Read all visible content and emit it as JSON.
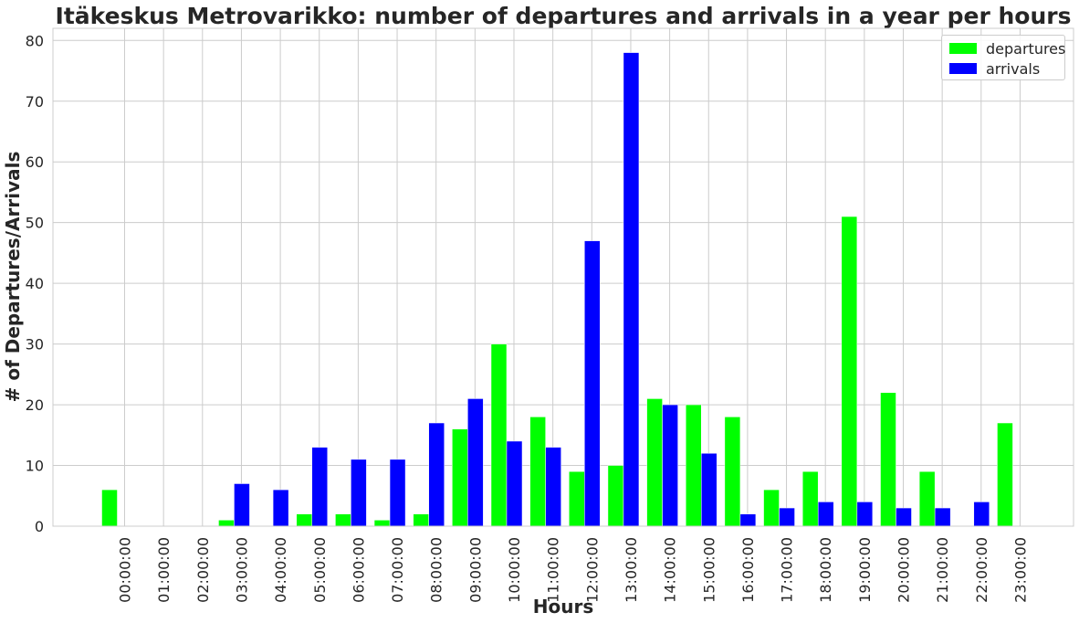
{
  "chart_data": {
    "type": "bar",
    "title": "Itäkeskus Metrovarikko: number of departures and arrivals in a year per hours",
    "xlabel": "Hours",
    "ylabel": "# of Departures/Arrivals",
    "ylim": [
      0,
      82
    ],
    "yticks": [
      0,
      10,
      20,
      30,
      40,
      50,
      60,
      70,
      80
    ],
    "grid": true,
    "legend_position": "top-right",
    "categories": [
      "00:00:00",
      "01:00:00",
      "02:00:00",
      "03:00:00",
      "04:00:00",
      "05:00:00",
      "06:00:00",
      "07:00:00",
      "08:00:00",
      "09:00:00",
      "10:00:00",
      "11:00:00",
      "12:00:00",
      "13:00:00",
      "14:00:00",
      "15:00:00",
      "16:00:00",
      "17:00:00",
      "18:00:00",
      "19:00:00",
      "20:00:00",
      "21:00:00",
      "22:00:00",
      "23:00:00"
    ],
    "series": [
      {
        "name": "departures",
        "color": "#00ff00",
        "values": [
          6,
          0,
          0,
          1,
          0,
          2,
          2,
          1,
          2,
          16,
          30,
          18,
          9,
          10,
          21,
          20,
          18,
          6,
          9,
          51,
          22,
          9,
          0,
          17
        ]
      },
      {
        "name": "arrivals",
        "color": "#0000ff",
        "values": [
          0,
          0,
          0,
          7,
          6,
          13,
          11,
          11,
          17,
          21,
          14,
          13,
          47,
          78,
          20,
          12,
          2,
          3,
          4,
          4,
          3,
          3,
          4,
          0
        ]
      }
    ]
  }
}
